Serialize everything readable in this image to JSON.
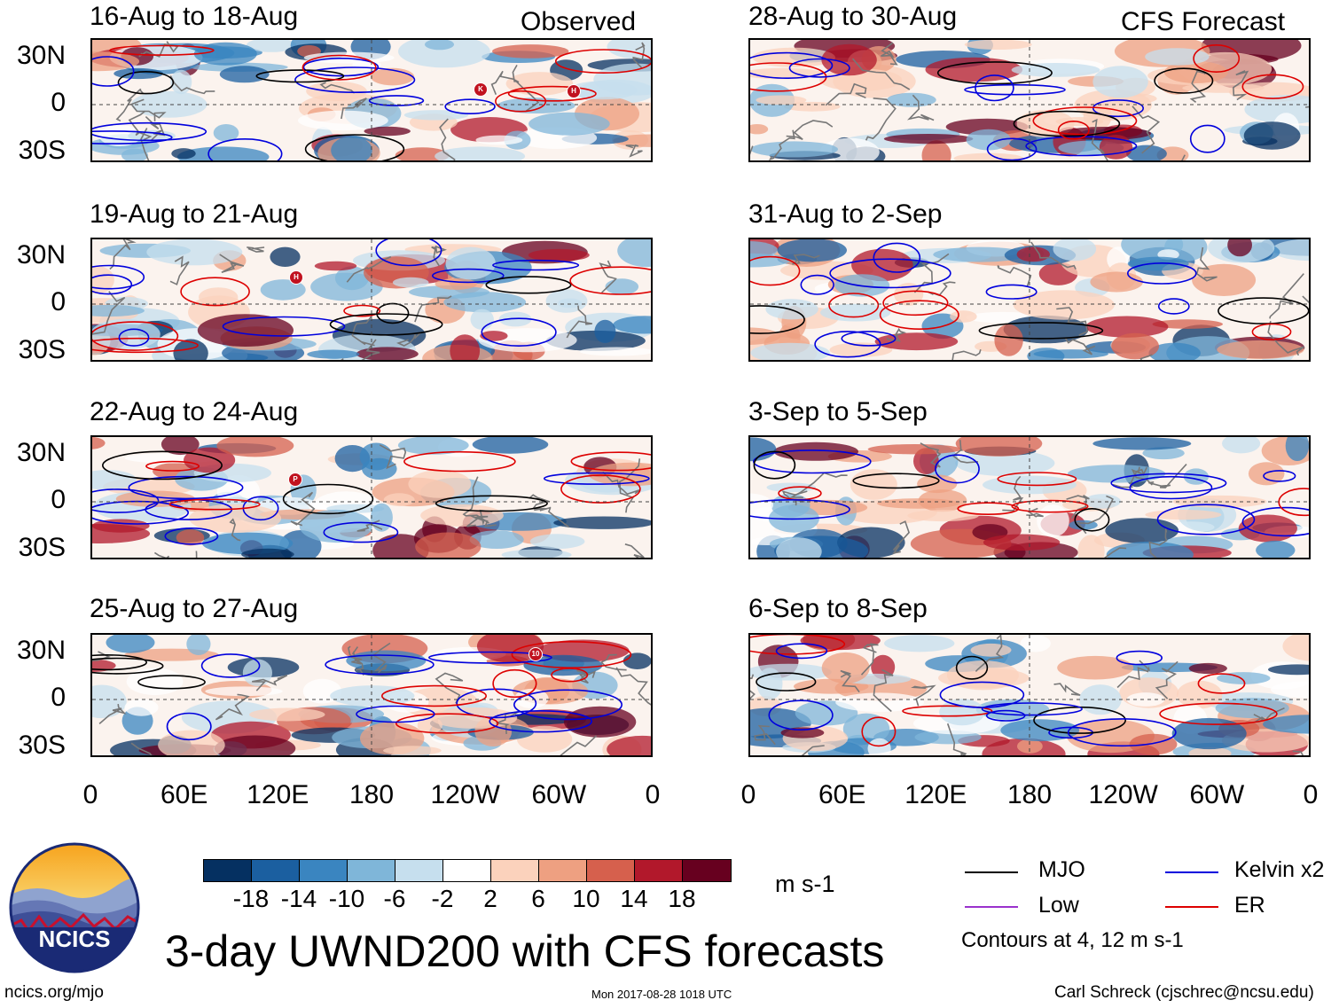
{
  "panels": {
    "left": [
      {
        "title": "16-Aug to 18-Aug",
        "tag": "Observed"
      },
      {
        "title": "19-Aug to 21-Aug",
        "tag": ""
      },
      {
        "title": "22-Aug to 24-Aug",
        "tag": ""
      },
      {
        "title": "25-Aug to 27-Aug",
        "tag": ""
      }
    ],
    "right": [
      {
        "title": "28-Aug to 30-Aug",
        "tag": "CFS Forecast"
      },
      {
        "title": "31-Aug to 2-Sep",
        "tag": ""
      },
      {
        "title": "3-Sep to 5-Sep",
        "tag": ""
      },
      {
        "title": "6-Sep to 8-Sep",
        "tag": ""
      }
    ]
  },
  "lat_labels": [
    "30N",
    "0",
    "30S"
  ],
  "lon_labels": [
    "0",
    "60E",
    "120E",
    "180",
    "120W",
    "60W",
    "0"
  ],
  "storm_markers": [
    {
      "panel": 0,
      "label": "K"
    },
    {
      "panel": 0,
      "label": "H"
    },
    {
      "panel": 1,
      "label": "H"
    },
    {
      "panel": 2,
      "label": "P"
    },
    {
      "panel": 3,
      "label": "10"
    }
  ],
  "colorbar": {
    "labels": [
      "-18",
      "-14",
      "-10",
      "-6",
      "-2",
      "2",
      "6",
      "10",
      "14",
      "18"
    ],
    "units": "m s-1",
    "colors": [
      "#053061",
      "#1b5fa0",
      "#3a85c0",
      "#7fb6d9",
      "#c6dfee",
      "#ffffff",
      "#fbd2bc",
      "#eea081",
      "#d6604d",
      "#b2182b",
      "#67001f"
    ]
  },
  "legend": {
    "mjo": {
      "label": "MJO",
      "color": "#000000"
    },
    "kelvin": {
      "label": "Kelvin x2",
      "color": "#0000dd"
    },
    "low": {
      "label": "Low",
      "color": "#9a32cd"
    },
    "er": {
      "label": "ER",
      "color": "#dd0000"
    },
    "note": "Contours at 4, 12 m s-1"
  },
  "footer": {
    "title": "3-day UWND200 with CFS forecasts",
    "url": "ncics.org/mjo",
    "timestamp": "Mon 2017-08-28 1018 UTC",
    "author": "Carl Schreck (cjschrec@ncsu.edu)",
    "logo_text": "NCICS"
  }
}
